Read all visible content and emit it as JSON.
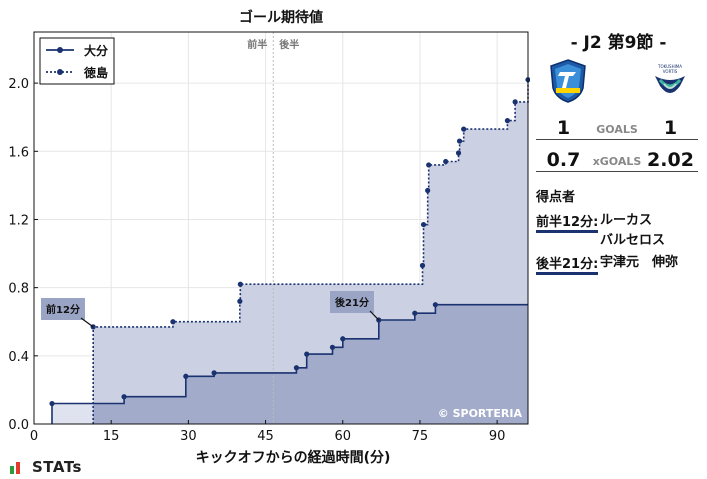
{
  "chart_data": {
    "type": "area",
    "title": "ゴール期待値",
    "xlabel": "キックオフからの経過時間(分)",
    "ylabel": "",
    "xlim": [
      0,
      96
    ],
    "ylim": [
      0,
      2.3
    ],
    "x_ticks": [
      0,
      15,
      30,
      45,
      60,
      75,
      90
    ],
    "y_ticks": [
      0.0,
      0.4,
      0.8,
      1.2,
      1.6,
      2.0
    ],
    "y_tick_labels": [
      "0.0",
      "0.4",
      "0.8",
      "1.2",
      "1.6",
      "2.0"
    ],
    "halftime_x": 46.5,
    "halftime_labels": [
      "前半",
      "後半"
    ],
    "grid": true,
    "legend_position": "top-left",
    "series": [
      {
        "name": "大分",
        "line_style": "solid",
        "color": "#1a3270",
        "fill": "#9aa5c6",
        "steps": [
          [
            3.5,
            0.12
          ],
          [
            17.5,
            0.16
          ],
          [
            29.5,
            0.28
          ],
          [
            35,
            0.3
          ],
          [
            51,
            0.33
          ],
          [
            53,
            0.41
          ],
          [
            58,
            0.45
          ],
          [
            60,
            0.5
          ],
          [
            67,
            0.61
          ],
          [
            74,
            0.65
          ],
          [
            78,
            0.7
          ],
          [
            96,
            0.7
          ]
        ],
        "goal": {
          "x": 67,
          "y": 0.61,
          "label": "後21分"
        }
      },
      {
        "name": "徳島",
        "line_style": "dotted",
        "color": "#1a3270",
        "fill": "#c9cde2",
        "steps": [
          [
            11.5,
            0.57
          ],
          [
            27,
            0.6
          ],
          [
            40,
            0.72
          ],
          [
            40.1,
            0.82
          ],
          [
            75.5,
            0.93
          ],
          [
            75.7,
            1.17
          ],
          [
            76.5,
            1.37
          ],
          [
            76.7,
            1.52
          ],
          [
            80,
            1.54
          ],
          [
            82.5,
            1.59
          ],
          [
            82.7,
            1.66
          ],
          [
            83.5,
            1.73
          ],
          [
            92,
            1.78
          ],
          [
            93.5,
            1.89
          ],
          [
            96,
            2.02
          ]
        ],
        "goal": {
          "x": 11.5,
          "y": 0.57,
          "label": "前12分"
        }
      }
    ],
    "watermark": "© SPORTERIA"
  },
  "panel": {
    "match_title": "- J2 第9節 -",
    "home_logo_text": "TRINITA",
    "away_logo_text": "TOKUSHIMA VORTIS",
    "goals_label": "GOALS",
    "goals_home": "1",
    "goals_away": "1",
    "xg_label": "xGOALS",
    "xg_home": "0.7",
    "xg_away": "2.02",
    "scorers_title": "得点者",
    "scorers": [
      {
        "time": "前半12分:",
        "names": [
          "ルーカス",
          "バルセロス"
        ]
      },
      {
        "time": "後半21分:",
        "names": [
          "宇津元　伸弥"
        ]
      }
    ]
  },
  "brand": {
    "name": "STATs"
  },
  "colors": {
    "navy": "#1a3270",
    "home_fill": "#9aa5c6",
    "away_fill": "#c9cde2",
    "label_bg": "#9aa5c6"
  }
}
